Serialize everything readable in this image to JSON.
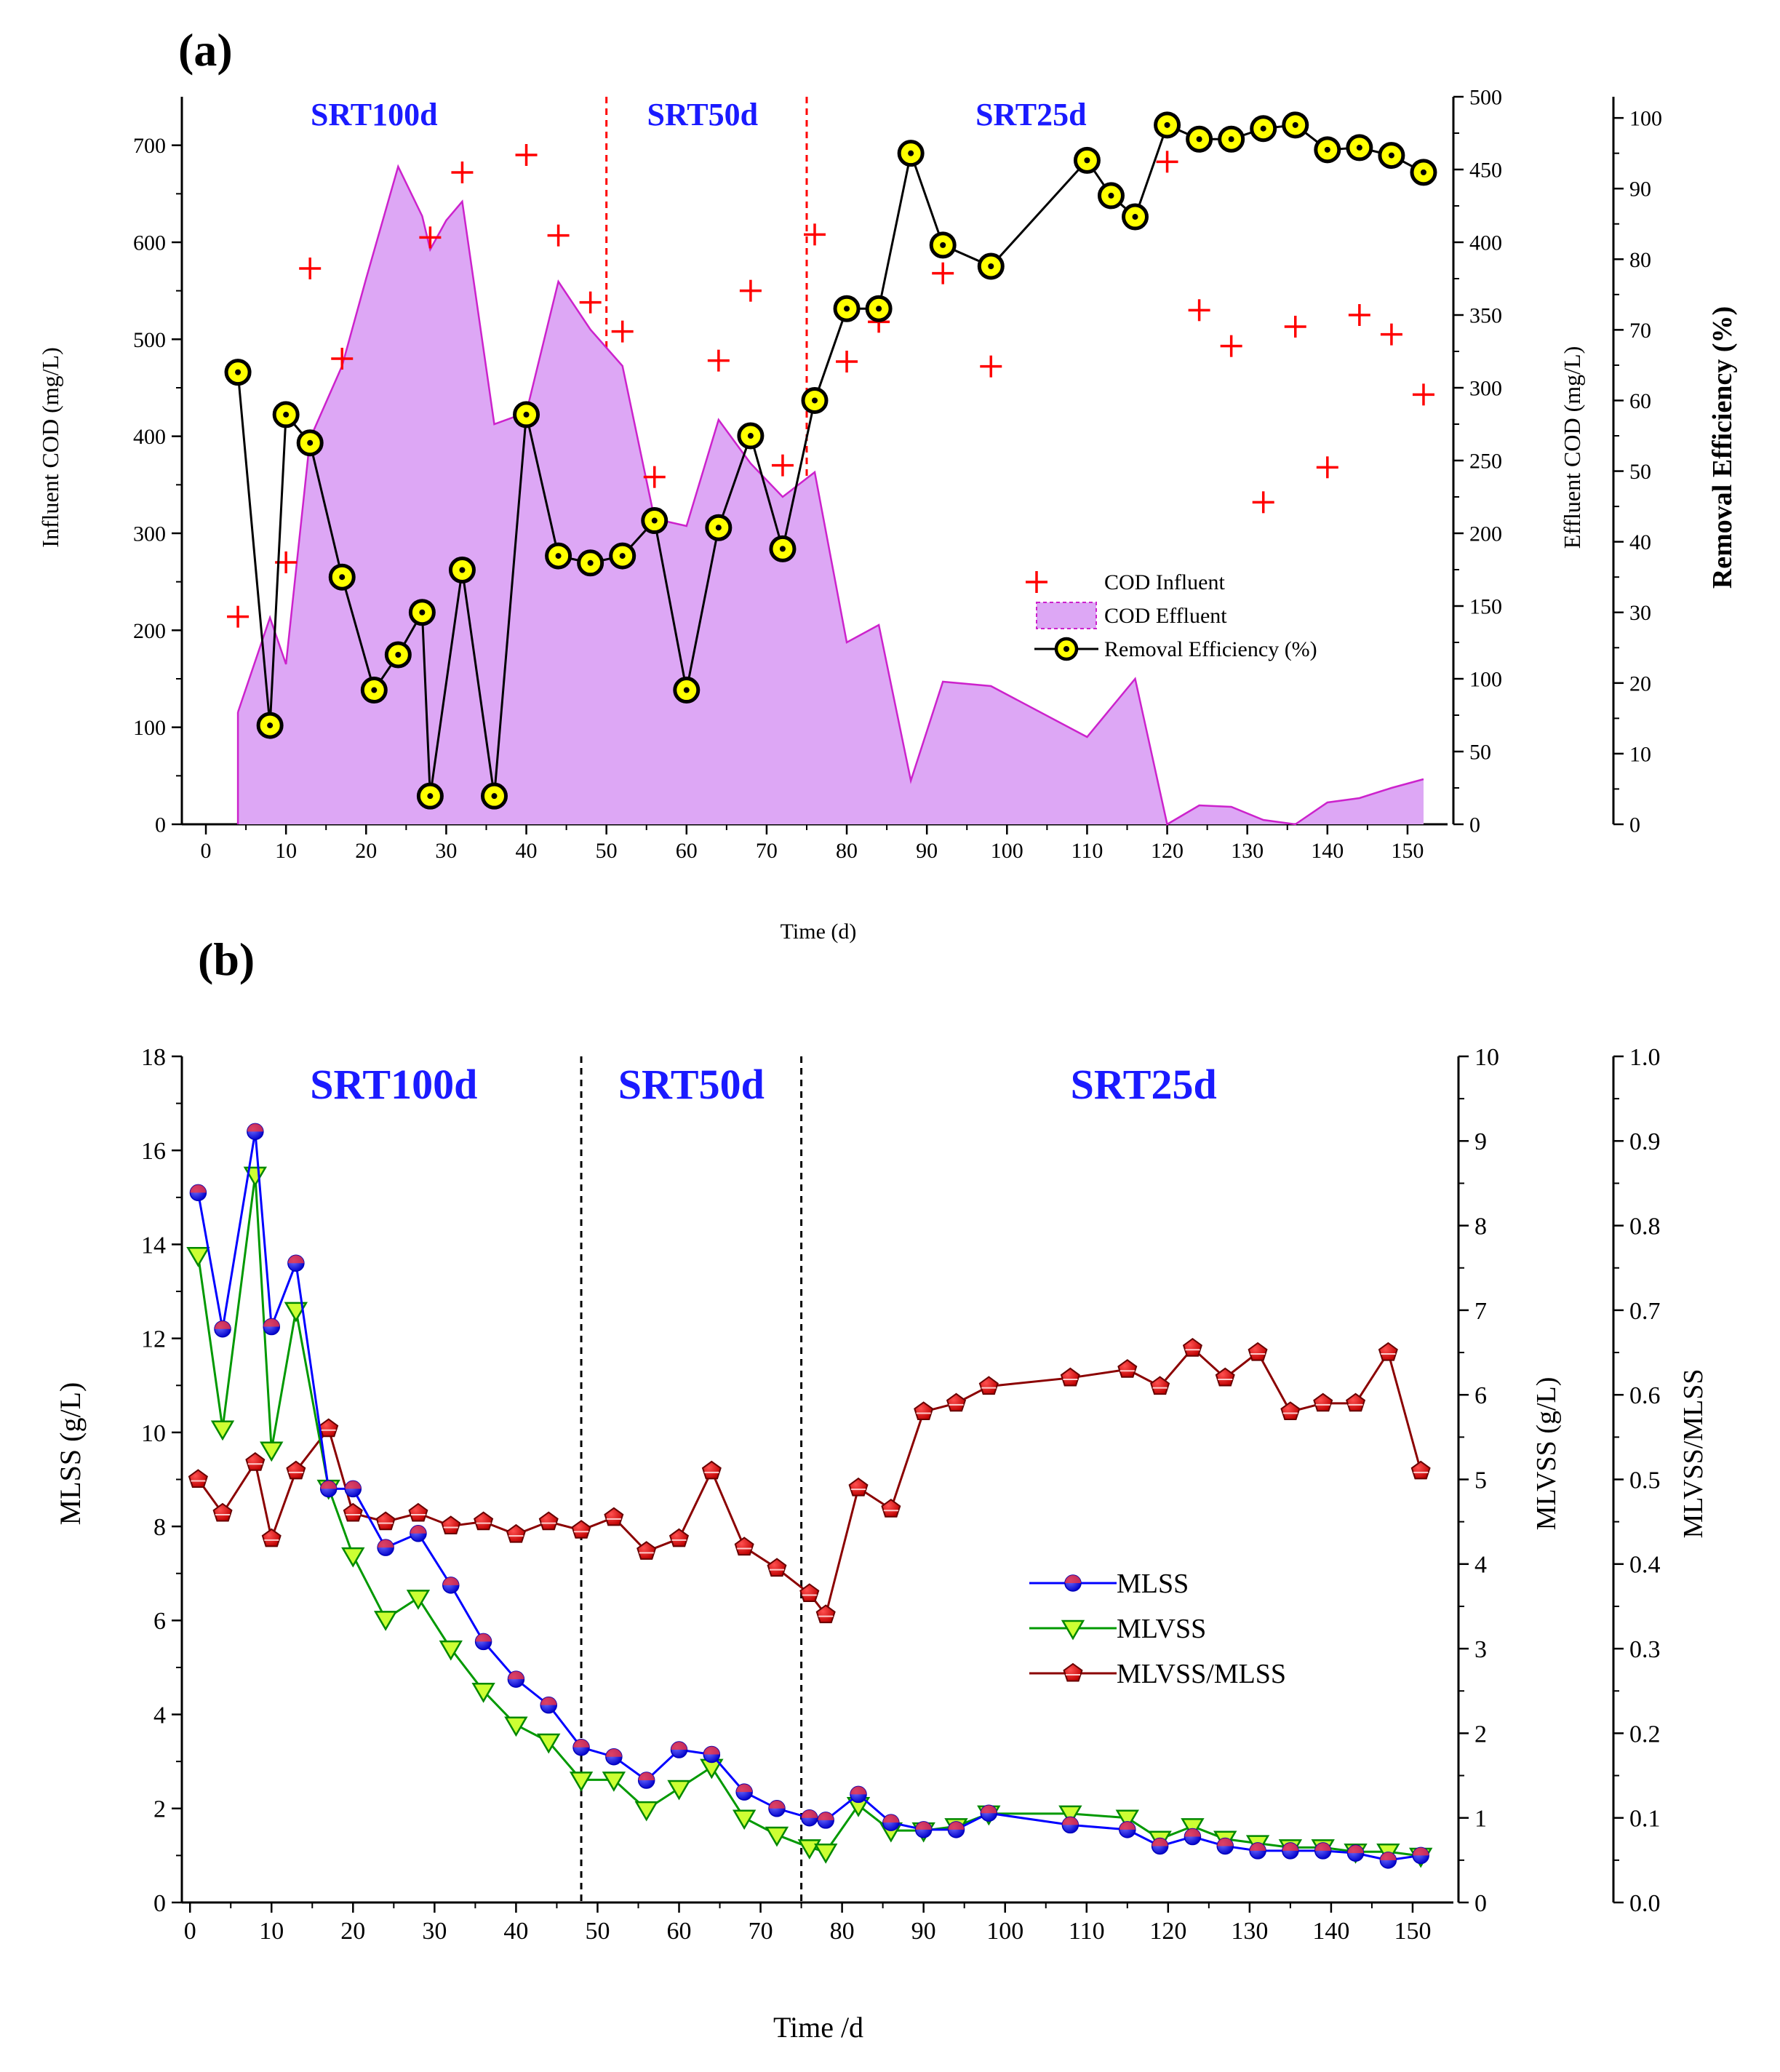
{
  "chart_data": [
    {
      "id": "a",
      "panel_label": "(a)",
      "type": "line",
      "title": "",
      "xlabel": "Time (d)",
      "ylabel_left": "Influent COD (mg/L)",
      "ylabel_right1": "Effluent COD (mg/L)",
      "ylabel_right2": "Removal Efficiency (%)",
      "xlim": [
        -3,
        155
      ],
      "x_ticks": [
        0,
        10,
        20,
        30,
        40,
        50,
        60,
        70,
        80,
        90,
        100,
        110,
        120,
        130,
        140,
        150
      ],
      "ylim_left": [
        0,
        750
      ],
      "y_left_ticks": [
        0,
        100,
        200,
        300,
        400,
        500,
        600,
        700
      ],
      "ylim_right1": [
        0,
        500
      ],
      "y_right1_ticks": [
        0,
        50,
        100,
        150,
        200,
        250,
        300,
        350,
        400,
        450,
        500
      ],
      "ylim_right2": [
        0,
        103
      ],
      "y_right2_ticks": [
        0,
        10,
        20,
        30,
        40,
        50,
        60,
        70,
        80,
        90,
        100
      ],
      "phase_lines": [
        50,
        75
      ],
      "phases": [
        {
          "label": "SRT100d",
          "x": 21
        },
        {
          "label": "SRT50d",
          "x": 62
        },
        {
          "label": "SRT25d",
          "x": 103
        }
      ],
      "legend": [
        "COD Influent",
        "COD Effluent",
        "Removal Efficiency (%)"
      ],
      "series": [
        {
          "name": "COD Influent",
          "axis": "left",
          "marker": "plus",
          "x": [
            4,
            10,
            13,
            17,
            28,
            32,
            40,
            44,
            48,
            52,
            56,
            64,
            68,
            72,
            76,
            80,
            84,
            92,
            98,
            120,
            124,
            128,
            132,
            136,
            140,
            144,
            148,
            152
          ],
          "y": [
            214,
            270,
            573,
            480,
            605,
            672,
            690,
            607,
            538,
            508,
            358,
            478,
            550,
            370,
            608,
            477,
            518,
            568,
            472,
            683,
            530,
            493,
            332,
            513,
            368,
            525,
            505,
            443
          ]
        },
        {
          "name": "COD Effluent",
          "axis": "right1",
          "style": "area",
          "x": [
            4,
            8,
            10,
            13,
            17,
            20,
            24,
            27,
            28,
            30,
            32,
            36,
            40,
            44,
            48,
            52,
            56,
            60,
            64,
            68,
            72,
            76,
            80,
            84,
            88,
            92,
            98,
            110,
            116,
            120,
            124,
            128,
            132,
            136,
            140,
            144,
            148,
            152
          ],
          "y": [
            77,
            142,
            110,
            265,
            315,
            375,
            452,
            418,
            395,
            415,
            428,
            275,
            283,
            373,
            340,
            315,
            210,
            205,
            278,
            248,
            225,
            242,
            125,
            137,
            30,
            98,
            95,
            60,
            100,
            0,
            13,
            12,
            3,
            0,
            15,
            18,
            25,
            31
          ]
        },
        {
          "name": "Removal Efficiency (%)",
          "axis": "right2",
          "marker": "circle",
          "x": [
            4,
            8,
            10,
            13,
            17,
            21,
            24,
            27,
            28,
            32,
            36,
            40,
            44,
            48,
            52,
            56,
            60,
            64,
            68,
            72,
            76,
            80,
            84,
            88,
            92,
            98,
            110,
            113,
            116,
            120,
            124,
            128,
            132,
            136,
            140,
            144,
            148,
            152
          ],
          "y": [
            64,
            14,
            58,
            54,
            35,
            19,
            24,
            30,
            4,
            36,
            4,
            58,
            38,
            37,
            38,
            43,
            19,
            42,
            55,
            39,
            60,
            73,
            73,
            95,
            82,
            79,
            94,
            89,
            86,
            99,
            97,
            97,
            98.5,
            99,
            95.5,
            95.8,
            94.7,
            92.3
          ]
        }
      ]
    },
    {
      "id": "b",
      "panel_label": "(b)",
      "type": "line",
      "title": "",
      "xlabel": "Time /d",
      "ylabel_left": "MLSS (g/L)",
      "ylabel_right1": "MLVSS (g/L)",
      "ylabel_right2": "MLVSS/MLSS",
      "xlim": [
        -1,
        155
      ],
      "x_ticks": [
        0,
        10,
        20,
        30,
        40,
        50,
        60,
        70,
        80,
        90,
        100,
        110,
        120,
        130,
        140,
        150
      ],
      "ylim_left": [
        0,
        18
      ],
      "y_left_ticks": [
        0,
        2,
        4,
        6,
        8,
        10,
        12,
        14,
        16,
        18
      ],
      "ylim_right1": [
        0,
        10
      ],
      "y_right1_ticks": [
        0,
        1,
        2,
        3,
        4,
        5,
        6,
        7,
        8,
        9,
        10
      ],
      "ylim_right2": [
        0,
        1.0
      ],
      "y_right2_ticks": [
        "0.0",
        "0.1",
        "0.2",
        "0.3",
        "0.4",
        "0.5",
        "0.6",
        "0.7",
        "0.8",
        "0.9",
        "1.0"
      ],
      "phase_lines": [
        48,
        75
      ],
      "phases": [
        {
          "label": "SRT100d",
          "x": 25
        },
        {
          "label": "SRT50d",
          "x": 61.5
        },
        {
          "label": "SRT25d",
          "x": 117
        }
      ],
      "legend": [
        "MLSS",
        "MLVSS",
        "MLVSS/MLSS"
      ],
      "series": [
        {
          "name": "MLSS",
          "axis": "left",
          "marker": "circle",
          "x": [
            1,
            4,
            8,
            10,
            13,
            17,
            20,
            24,
            28,
            32,
            36,
            40,
            44,
            48,
            52,
            56,
            60,
            64,
            68,
            72,
            76,
            78,
            82,
            86,
            90,
            94,
            98,
            108,
            115,
            119,
            123,
            127,
            131,
            135,
            139,
            143,
            147,
            151
          ],
          "y": [
            15.1,
            12.2,
            16.4,
            12.25,
            13.6,
            8.8,
            8.8,
            7.55,
            7.85,
            6.75,
            5.55,
            4.75,
            4.2,
            3.3,
            3.1,
            2.6,
            3.25,
            3.15,
            2.35,
            2.0,
            1.8,
            1.75,
            2.3,
            1.7,
            1.55,
            1.55,
            1.9,
            1.65,
            1.55,
            1.2,
            1.4,
            1.2,
            1.1,
            1.1,
            1.1,
            1.05,
            0.9,
            1.0
          ]
        },
        {
          "name": "MLVSS",
          "axis": "right1",
          "marker": "triangle",
          "x": [
            1,
            4,
            8,
            10,
            13,
            17,
            20,
            24,
            28,
            32,
            36,
            40,
            44,
            48,
            52,
            56,
            60,
            64,
            68,
            72,
            76,
            78,
            82,
            86,
            90,
            94,
            98,
            108,
            115,
            119,
            123,
            127,
            131,
            135,
            139,
            143,
            147,
            151
          ],
          "y": [
            7.65,
            5.6,
            8.6,
            5.35,
            7.0,
            4.9,
            4.1,
            3.35,
            3.6,
            3.0,
            2.5,
            2.1,
            1.9,
            1.45,
            1.45,
            1.1,
            1.35,
            1.6,
            1.0,
            0.8,
            0.65,
            0.6,
            1.15,
            0.85,
            0.85,
            0.9,
            1.05,
            1.05,
            1.0,
            0.75,
            0.9,
            0.75,
            0.7,
            0.65,
            0.65,
            0.6,
            0.6,
            0.55
          ]
        },
        {
          "name": "MLVSS/MLSS",
          "axis": "right2",
          "marker": "pentagon",
          "x": [
            1,
            4,
            8,
            10,
            13,
            17,
            20,
            24,
            28,
            32,
            36,
            40,
            44,
            48,
            52,
            56,
            60,
            64,
            68,
            72,
            76,
            78,
            82,
            86,
            90,
            94,
            98,
            108,
            115,
            119,
            123,
            127,
            131,
            135,
            139,
            143,
            147,
            151
          ],
          "y": [
            0.5,
            0.46,
            0.52,
            0.43,
            0.51,
            0.56,
            0.46,
            0.45,
            0.46,
            0.445,
            0.45,
            0.435,
            0.45,
            0.44,
            0.455,
            0.415,
            0.43,
            0.51,
            0.42,
            0.395,
            0.365,
            0.34,
            0.49,
            0.465,
            0.58,
            0.59,
            0.61,
            0.62,
            0.63,
            0.61,
            0.655,
            0.62,
            0.65,
            0.58,
            0.59,
            0.59,
            0.65,
            0.51
          ]
        }
      ]
    }
  ]
}
